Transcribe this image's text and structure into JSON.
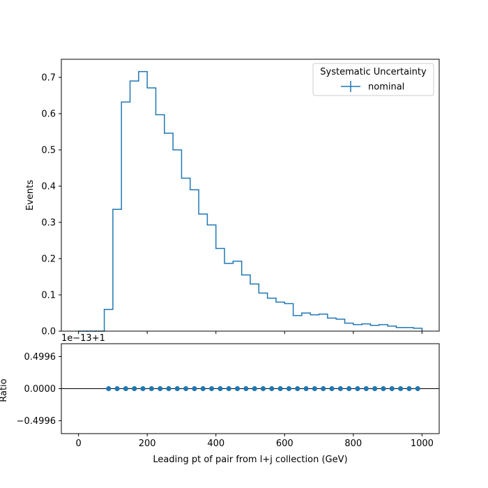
{
  "chart_data": [
    {
      "type": "line",
      "style": "step-histogram",
      "color": "#1f77b4",
      "ylabel": "Events",
      "xlim": [
        -50,
        1050
      ],
      "ylim": [
        0,
        0.75
      ],
      "x_ticks": [
        0,
        200,
        400,
        600,
        800,
        1000
      ],
      "y_ticks": [
        "0.0",
        "0.1",
        "0.2",
        "0.3",
        "0.4",
        "0.5",
        "0.6",
        "0.7"
      ],
      "grid": false,
      "legend": {
        "title": "Systematic Uncertainty",
        "placement": "top-right",
        "entries": [
          "nominal"
        ]
      },
      "bin_edges": [
        0,
        25,
        50,
        75,
        100,
        125,
        150,
        175,
        200,
        225,
        250,
        275,
        300,
        325,
        350,
        375,
        400,
        425,
        450,
        475,
        500,
        525,
        550,
        575,
        600,
        625,
        650,
        675,
        700,
        725,
        750,
        775,
        800,
        825,
        850,
        875,
        900,
        925,
        950,
        975,
        1000
      ],
      "series": [
        {
          "name": "nominal",
          "values": [
            0.0,
            0.0,
            0.0,
            0.06,
            0.336,
            0.632,
            0.69,
            0.716,
            0.671,
            0.597,
            0.546,
            0.5,
            0.422,
            0.39,
            0.323,
            0.293,
            0.228,
            0.187,
            0.193,
            0.155,
            0.13,
            0.105,
            0.091,
            0.08,
            0.076,
            0.043,
            0.05,
            0.045,
            0.047,
            0.036,
            0.033,
            0.022,
            0.018,
            0.02,
            0.016,
            0.018,
            0.014,
            0.01,
            0.01,
            0.008
          ]
        }
      ]
    },
    {
      "type": "scatter",
      "color": "#1f77b4",
      "xlabel": "Leading pt of pair from l+j collection (GeV)",
      "ylabel": "Ratio",
      "offset_text": "1e−13+1",
      "xlim": [
        -50,
        1050
      ],
      "ylim": [
        -0.7,
        0.7
      ],
      "x_ticks": [
        0,
        200,
        400,
        600,
        800,
        1000
      ],
      "y_ticks": [
        "−0.4996",
        "0.0000",
        "0.4996"
      ],
      "reference_line": 0,
      "grid": false,
      "series": [
        {
          "x": [
            87.5,
            112.5,
            137.5,
            162.5,
            187.5,
            212.5,
            237.5,
            262.5,
            287.5,
            312.5,
            337.5,
            362.5,
            387.5,
            412.5,
            437.5,
            462.5,
            487.5,
            512.5,
            537.5,
            562.5,
            587.5,
            612.5,
            637.5,
            662.5,
            687.5,
            712.5,
            737.5,
            762.5,
            787.5,
            812.5,
            837.5,
            862.5,
            887.5,
            912.5,
            937.5,
            962.5,
            987.5
          ],
          "y": [
            0,
            0,
            0,
            0,
            0,
            0,
            0,
            0,
            0,
            0,
            0,
            0,
            0,
            0,
            0,
            0,
            0,
            0,
            0,
            0,
            0,
            0,
            0,
            0,
            0,
            0,
            0,
            0,
            0,
            0,
            0,
            0,
            0,
            0,
            0,
            0,
            0
          ]
        }
      ]
    }
  ]
}
